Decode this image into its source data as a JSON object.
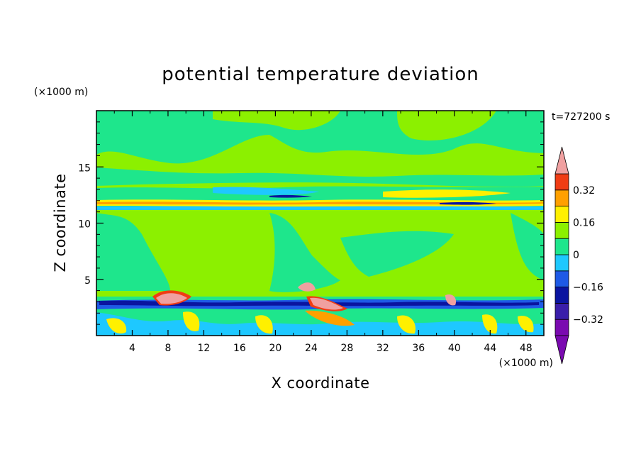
{
  "chart_data": {
    "type": "heatmap",
    "title": "potential temperature deviation",
    "xlabel": "X coordinate",
    "ylabel": "Z coordinate",
    "x_unit": "(×1000 m)",
    "y_unit": "(×1000 m)",
    "time_label": "t=727200 s",
    "xlim": [
      0,
      50
    ],
    "ylim": [
      0,
      20
    ],
    "x_ticks": [
      4,
      8,
      12,
      16,
      20,
      24,
      28,
      32,
      36,
      40,
      44,
      48
    ],
    "y_ticks": [
      5,
      10,
      15
    ],
    "colorbar": {
      "levels": [
        -0.4,
        -0.32,
        -0.24,
        -0.16,
        -0.08,
        0,
        0.08,
        0.16,
        0.24,
        0.32,
        0.4
      ],
      "tick_labels": [
        "0.32",
        "0.16",
        "0",
        "−0.16",
        "−0.32"
      ],
      "tick_values": [
        0.32,
        0.16,
        0,
        -0.16,
        -0.32
      ],
      "colors": [
        "#7a0ab0",
        "#3a1eaa",
        "#0a14a0",
        "#1e5ae6",
        "#1ec8ff",
        "#1ee68c",
        "#8cf000",
        "#fff000",
        "#ffa000",
        "#f03c14",
        "#f0a0a0"
      ]
    }
  }
}
